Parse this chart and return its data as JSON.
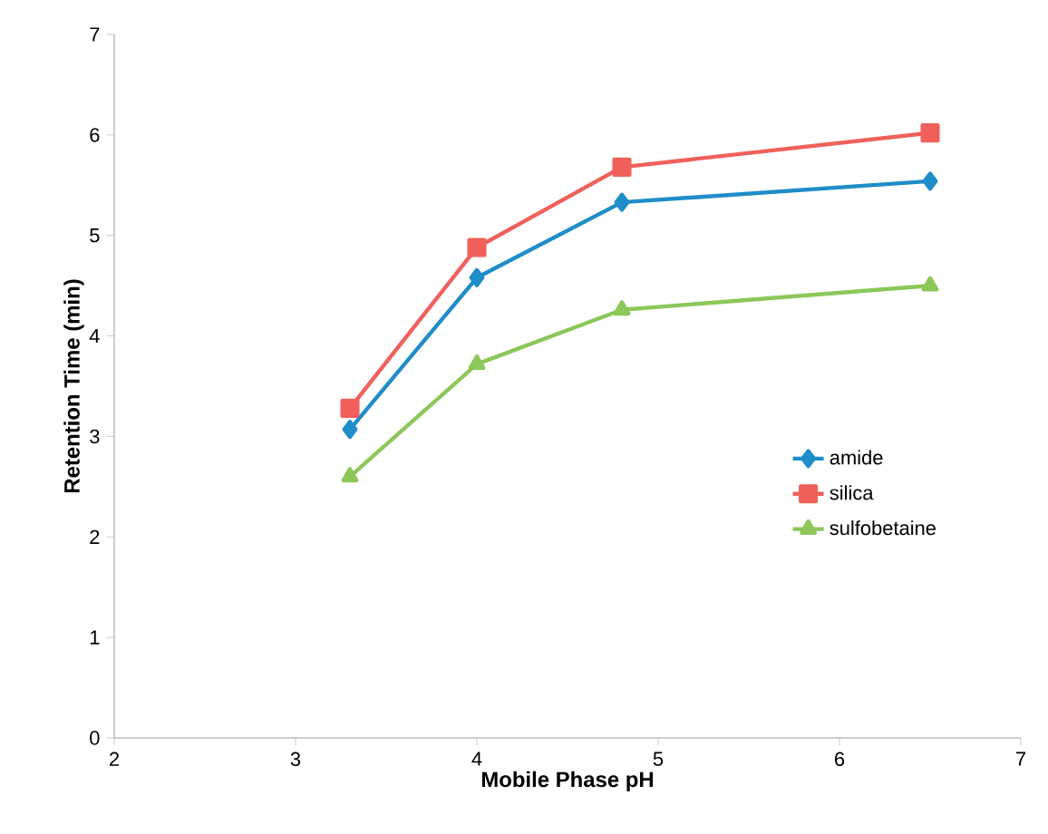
{
  "chart_data": {
    "type": "line",
    "xlabel": "Mobile Phase pH",
    "ylabel": "Retention Time (min)",
    "x": [
      3.3,
      4,
      4.8,
      6.5
    ],
    "series": [
      {
        "name": "amide",
        "color": "#1f8dc8",
        "marker": "diamond",
        "values": [
          3.07,
          4.58,
          5.33,
          5.54
        ]
      },
      {
        "name": "silica",
        "color": "#f0605a",
        "marker": "square",
        "values": [
          3.28,
          4.88,
          5.68,
          6.02
        ]
      },
      {
        "name": "sulfobetaine",
        "color": "#8cc75a",
        "marker": "triangle",
        "values": [
          2.6,
          3.72,
          4.26,
          4.5
        ]
      }
    ],
    "xlim": [
      2,
      7
    ],
    "xticks": [
      2,
      3,
      4,
      5,
      6,
      7
    ],
    "ylim": [
      0,
      7
    ],
    "yticks": [
      0,
      1,
      2,
      3,
      4,
      5,
      6,
      7
    ],
    "grid": false,
    "legend": "right",
    "line_style": "solid"
  }
}
